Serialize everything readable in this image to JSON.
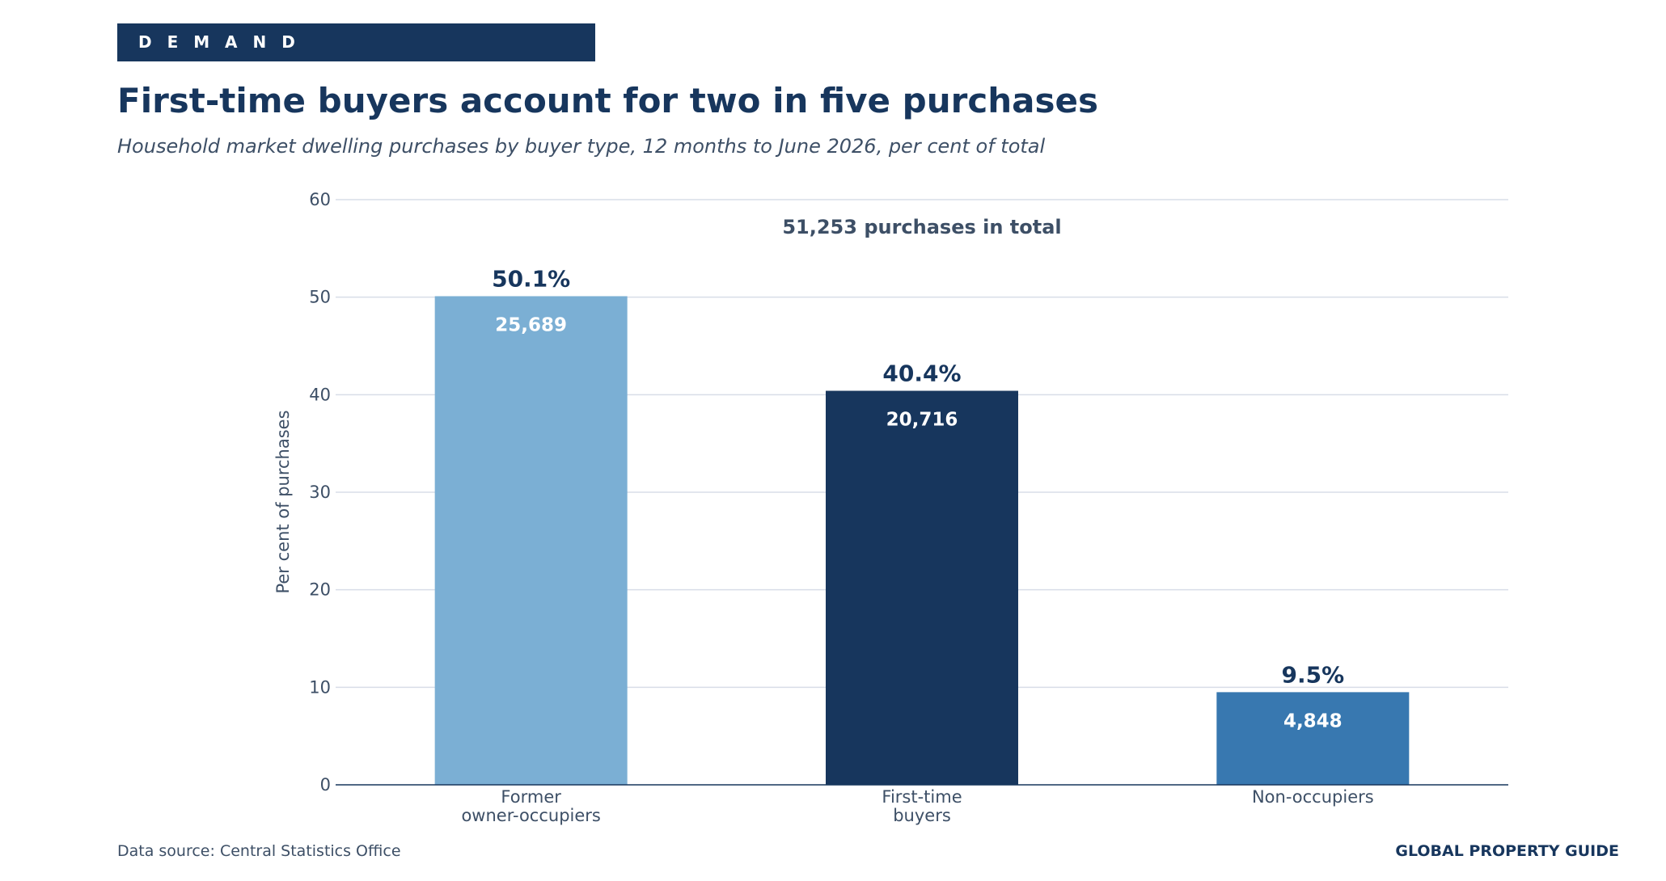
{
  "banner": {
    "label": "D E M A N D"
  },
  "header": {
    "title": "First-time buyers account for two in five purchases",
    "subtitle": "Household market dwelling purchases by buyer type, 12 months to June 2026, per cent of total"
  },
  "chart_data": {
    "type": "bar",
    "categories": [
      [
        "Former",
        "owner-occupiers"
      ],
      [
        "First-time",
        "buyers"
      ],
      [
        "Non-occupiers"
      ]
    ],
    "values": [
      50.1,
      40.4,
      9.5
    ],
    "value_labels": [
      "50.1%",
      "40.4%",
      "9.5%"
    ],
    "count_labels": [
      "25,689",
      "20,716",
      "4,848"
    ],
    "bar_colors": [
      "#7bafd4",
      "#17365d",
      "#3878b0"
    ],
    "annotation": "51,253 purchases in total",
    "xlabel": "",
    "ylabel": "Per cent of purchases",
    "ylim": [
      0,
      60
    ],
    "yticks": [
      0,
      10,
      20,
      30,
      40,
      50,
      60
    ],
    "grid": true,
    "legend": "none"
  },
  "footer": {
    "source": "Data source: Central Statistics Office",
    "brand": "GLOBAL PROPERTY GUIDE"
  },
  "colors": {
    "navy": "#17365d",
    "text_muted": "#3d4f66",
    "grid": "#d8dde8"
  }
}
